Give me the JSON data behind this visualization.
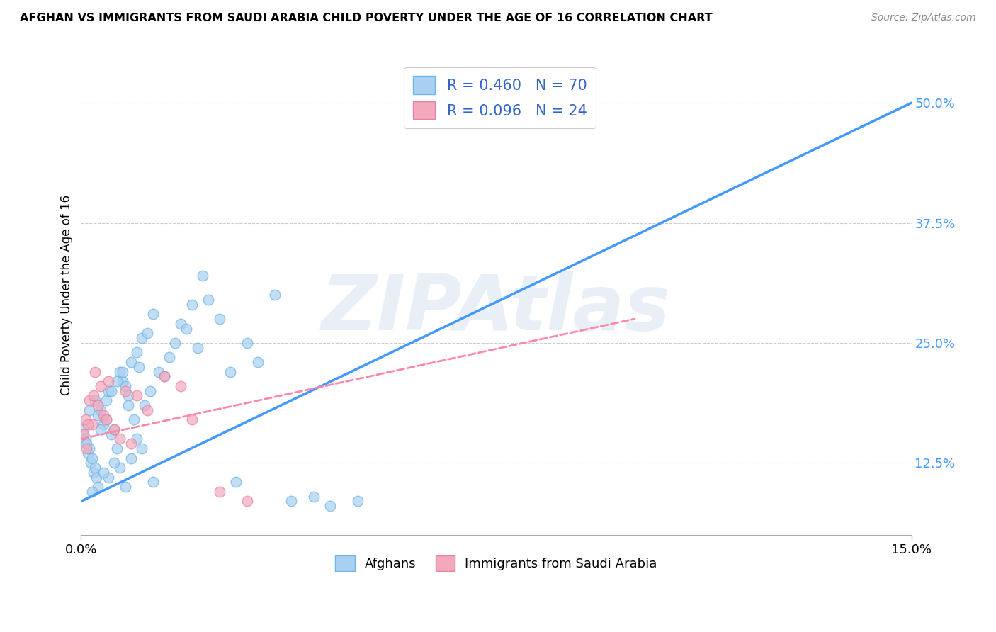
{
  "title": "AFGHAN VS IMMIGRANTS FROM SAUDI ARABIA CHILD POVERTY UNDER THE AGE OF 16 CORRELATION CHART",
  "source": "Source: ZipAtlas.com",
  "ylabel": "Child Poverty Under the Age of 16",
  "watermark": "ZIPAtlas",
  "xlim": [
    0.0,
    15.0
  ],
  "ylim": [
    5.0,
    55.0
  ],
  "yticks": [
    12.5,
    25.0,
    37.5,
    50.0
  ],
  "ytick_labels": [
    "12.5%",
    "25.0%",
    "37.5%",
    "50.0%"
  ],
  "legend_label1": "R = 0.460   N = 70",
  "legend_label2": "R = 0.096   N = 24",
  "blue_color": "#A8D0F0",
  "pink_color": "#F4A8BC",
  "blue_edge_color": "#6EB4E8",
  "pink_edge_color": "#E880A0",
  "blue_line_color": "#4499FF",
  "pink_line_color": "#FF88AA",
  "tick_color": "#4499FF",
  "bg_color": "#FFFFFF",
  "grid_color": "#CCCCCC",
  "legend_text_color": "#3366CC",
  "afghan_dots_x": [
    0.05,
    0.08,
    0.1,
    0.12,
    0.15,
    0.18,
    0.2,
    0.22,
    0.25,
    0.28,
    0.3,
    0.35,
    0.4,
    0.45,
    0.5,
    0.55,
    0.6,
    0.65,
    0.7,
    0.75,
    0.8,
    0.85,
    0.9,
    0.95,
    1.0,
    1.05,
    1.1,
    1.15,
    1.2,
    1.25,
    1.3,
    1.4,
    1.5,
    1.6,
    1.7,
    1.8,
    1.9,
    2.0,
    2.1,
    2.2,
    2.3,
    2.5,
    2.7,
    3.0,
    3.2,
    3.5,
    3.8,
    4.2,
    4.5,
    5.0,
    0.3,
    0.5,
    0.7,
    0.9,
    1.1,
    1.3,
    0.2,
    0.4,
    0.6,
    0.8,
    1.0,
    0.15,
    0.25,
    0.35,
    0.45,
    0.55,
    0.65,
    0.75,
    0.85,
    2.8
  ],
  "afghan_dots_y": [
    16.0,
    15.0,
    14.5,
    13.5,
    14.0,
    12.5,
    13.0,
    11.5,
    12.0,
    11.0,
    17.5,
    18.0,
    16.5,
    19.0,
    20.0,
    15.5,
    16.0,
    14.0,
    22.0,
    21.0,
    20.5,
    19.5,
    23.0,
    17.0,
    24.0,
    22.5,
    25.5,
    18.5,
    26.0,
    20.0,
    28.0,
    22.0,
    21.5,
    23.5,
    25.0,
    27.0,
    26.5,
    29.0,
    24.5,
    32.0,
    29.5,
    27.5,
    22.0,
    25.0,
    23.0,
    30.0,
    8.5,
    9.0,
    8.0,
    8.5,
    10.0,
    11.0,
    12.0,
    13.0,
    14.0,
    10.5,
    9.5,
    11.5,
    12.5,
    10.0,
    15.0,
    18.0,
    19.0,
    16.0,
    17.0,
    20.0,
    21.0,
    22.0,
    18.5,
    10.5
  ],
  "saudi_dots_x": [
    0.05,
    0.08,
    0.1,
    0.15,
    0.2,
    0.25,
    0.3,
    0.35,
    0.4,
    0.5,
    0.6,
    0.7,
    0.8,
    0.9,
    1.0,
    1.2,
    1.5,
    2.0,
    2.5,
    3.0,
    0.12,
    0.22,
    0.45,
    1.8
  ],
  "saudi_dots_y": [
    15.5,
    17.0,
    14.0,
    19.0,
    16.5,
    22.0,
    18.5,
    20.5,
    17.5,
    21.0,
    16.0,
    15.0,
    20.0,
    14.5,
    19.5,
    18.0,
    21.5,
    17.0,
    9.5,
    8.5,
    16.5,
    19.5,
    17.0,
    20.5
  ],
  "afghan_trend_x": [
    0.0,
    15.0
  ],
  "afghan_trend_y": [
    8.5,
    50.0
  ],
  "saudi_trend_x": [
    0.0,
    10.0
  ],
  "saudi_trend_y": [
    15.0,
    27.5
  ],
  "bottom_legend_labels": [
    "Afghans",
    "Immigrants from Saudi Arabia"
  ]
}
